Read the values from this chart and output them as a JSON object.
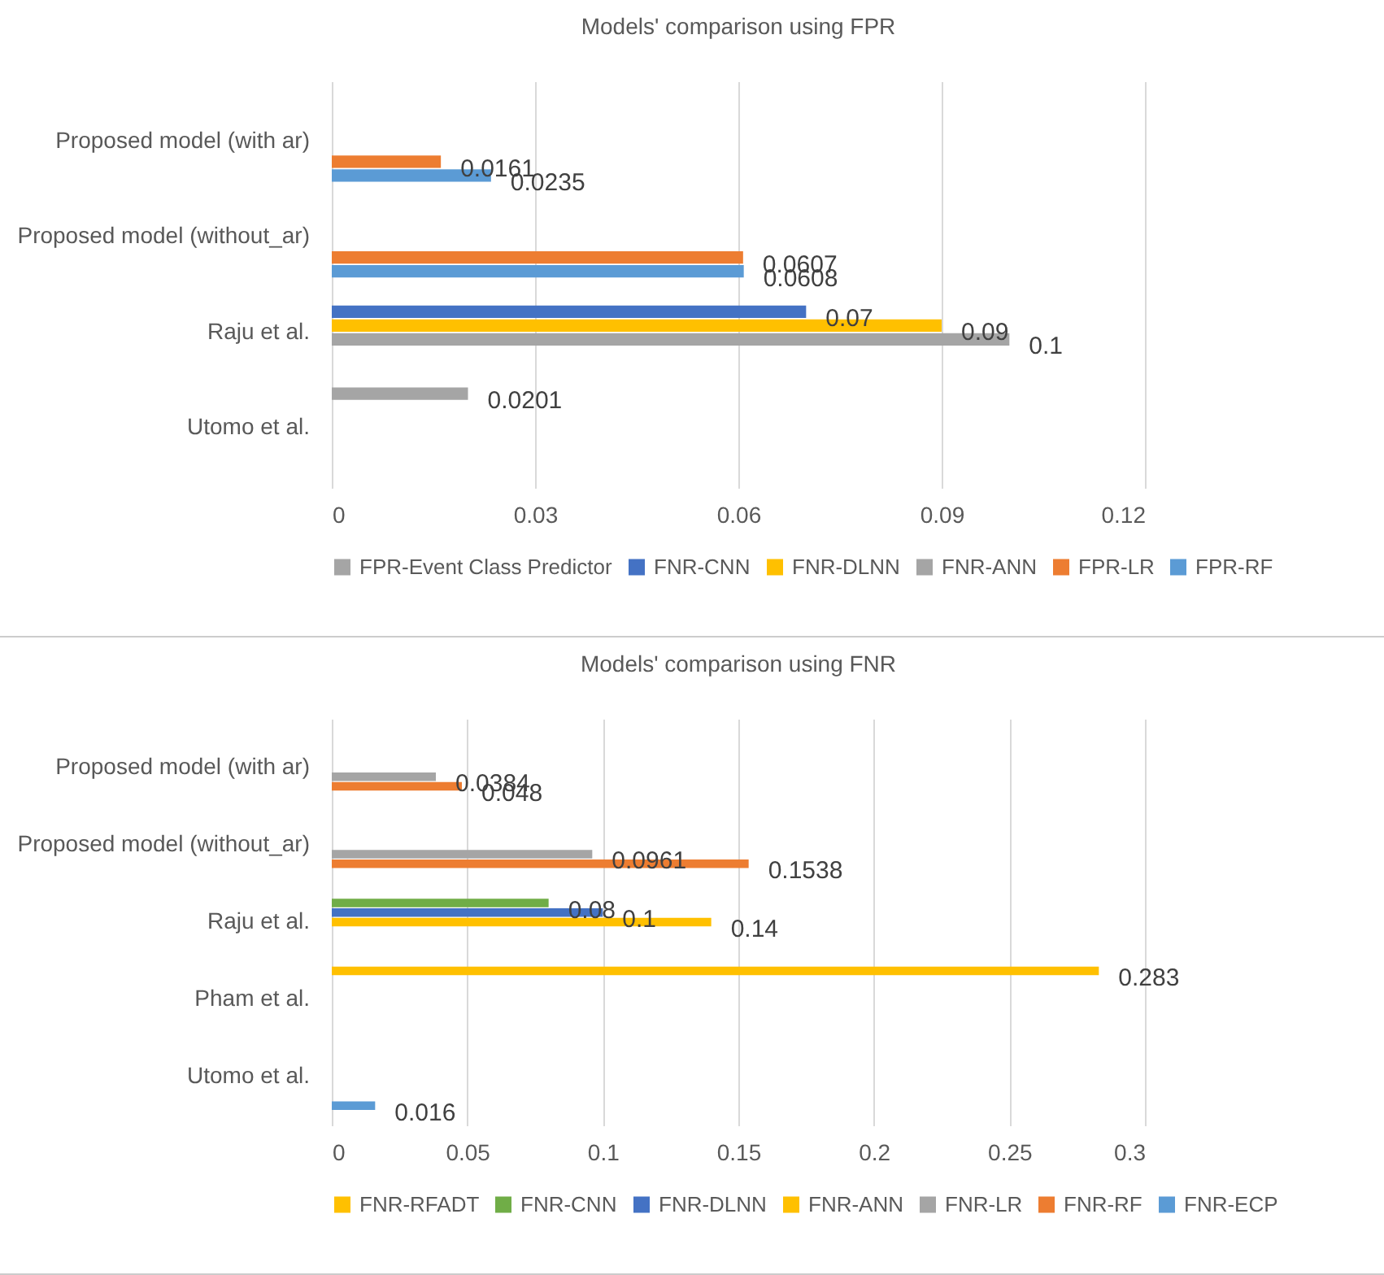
{
  "chart_data": [
    {
      "type": "bar",
      "orientation": "horizontal",
      "title": "Models' comparison using FPR",
      "categories": [
        "Proposed model (with ar)",
        "Proposed model (without_ar)",
        "Raju et al.",
        "Utomo et al."
      ],
      "series": [
        {
          "name": "FPR-Event Class Predictor",
          "color": "#a5a5a5",
          "values": [
            null,
            null,
            null,
            0.0201
          ]
        },
        {
          "name": "FNR-CNN",
          "color": "#4472c4",
          "values": [
            null,
            null,
            0.07,
            null
          ]
        },
        {
          "name": "FNR-DLNN",
          "color": "#ffc000",
          "values": [
            null,
            null,
            0.09,
            null
          ]
        },
        {
          "name": "FNR-ANN",
          "color": "#a5a5a5",
          "values": [
            null,
            null,
            0.1,
            null
          ]
        },
        {
          "name": "FPR-LR",
          "color": "#ed7d31",
          "values": [
            0.0161,
            0.0607,
            null,
            null
          ]
        },
        {
          "name": "FPR-RF",
          "color": "#5b9bd5",
          "values": [
            0.0235,
            0.0608,
            null,
            null
          ]
        }
      ],
      "xlim": [
        0,
        0.12
      ],
      "xticks": [
        0,
        0.03,
        0.06,
        0.09,
        0.12
      ],
      "grid": "x",
      "legend": "bottom",
      "data_labels": true
    },
    {
      "type": "bar",
      "orientation": "horizontal",
      "title": "Models' comparison using FNR",
      "categories": [
        "Proposed model (with ar)",
        "Proposed model (without_ar)",
        "Raju et al.",
        "Pham et al.",
        "Utomo et al."
      ],
      "series": [
        {
          "name": "FNR-RFADT",
          "color": "#ffc000",
          "values": [
            null,
            null,
            null,
            0.283,
            null
          ]
        },
        {
          "name": "FNR-CNN",
          "color": "#70ad47",
          "values": [
            null,
            null,
            0.08,
            null,
            null
          ]
        },
        {
          "name": "FNR-DLNN",
          "color": "#4472c4",
          "values": [
            null,
            null,
            0.1,
            null,
            null
          ]
        },
        {
          "name": "FNR-ANN",
          "color": "#ffc000",
          "values": [
            null,
            null,
            0.14,
            null,
            null
          ]
        },
        {
          "name": "FNR-LR",
          "color": "#a5a5a5",
          "values": [
            0.0384,
            0.0961,
            null,
            null,
            null
          ]
        },
        {
          "name": "FNR-RF",
          "color": "#ed7d31",
          "values": [
            0.048,
            0.1538,
            null,
            null,
            null
          ]
        },
        {
          "name": "FNR-ECP",
          "color": "#5b9bd5",
          "values": [
            null,
            null,
            null,
            null,
            0.016
          ]
        }
      ],
      "xlim": [
        0,
        0.3
      ],
      "xticks": [
        0,
        0.05,
        0.1,
        0.15,
        0.2,
        0.25,
        0.3
      ],
      "grid": "x",
      "legend": "bottom",
      "data_labels": true
    }
  ]
}
